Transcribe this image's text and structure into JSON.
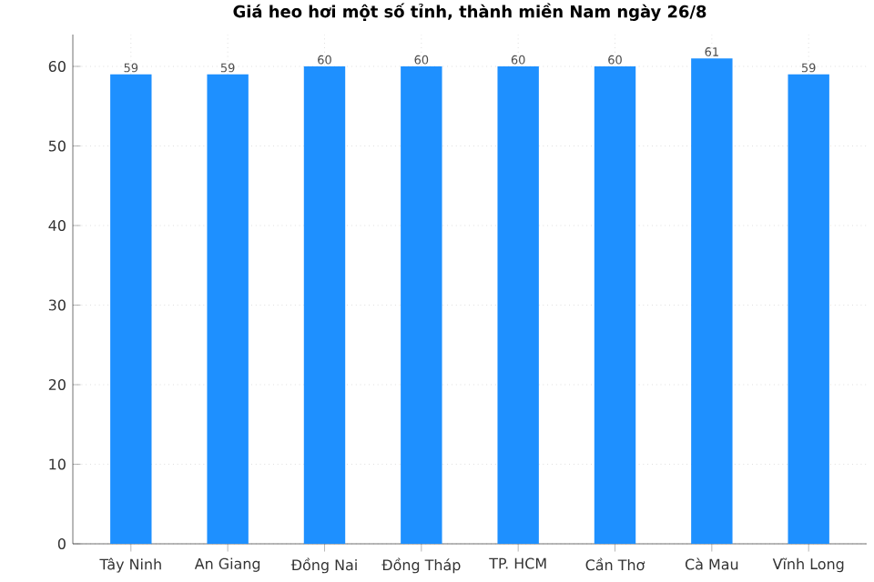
{
  "chart_data": {
    "type": "bar",
    "title": "Giá heo hơi một số tỉnh, thành miền Nam ngày 26/8",
    "categories": [
      "Tây Ninh",
      "An Giang",
      "Đồng Nai",
      "Đồng Tháp",
      "TP. HCM",
      "Cần Thơ",
      "Cà Mau",
      "Vĩnh Long"
    ],
    "values": [
      59,
      59,
      60,
      60,
      60,
      60,
      61,
      59
    ],
    "color": "#1e90ff",
    "ylim": [
      0,
      64
    ],
    "yticks": [
      0,
      10,
      20,
      30,
      40,
      50,
      60
    ],
    "grid": true,
    "data_labels": true
  }
}
